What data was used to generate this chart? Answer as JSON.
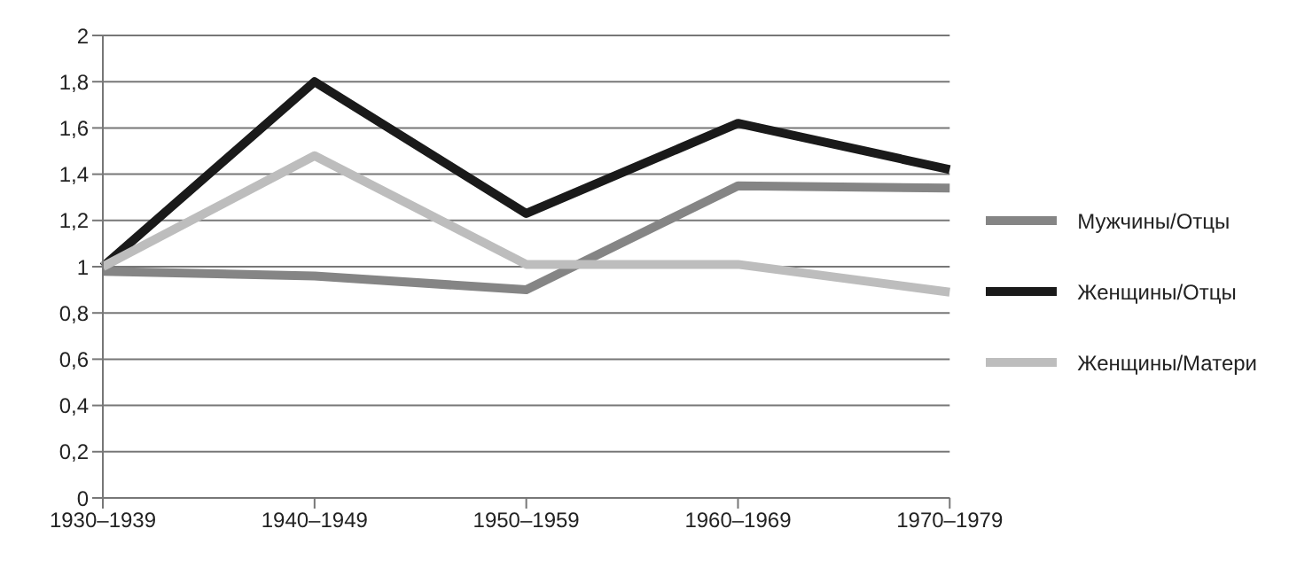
{
  "chart_data": {
    "type": "line",
    "categories": [
      "1930–1939",
      "1940–1949",
      "1950–1959",
      "1960–1969",
      "1970–1979"
    ],
    "series": [
      {
        "name": "Мужчины/Отцы",
        "color": "#858585",
        "values": [
          0.98,
          0.96,
          0.9,
          1.35,
          1.34
        ]
      },
      {
        "name": "Женщины/Отцы",
        "color": "#1a1a1a",
        "values": [
          1.0,
          1.8,
          1.23,
          1.62,
          1.42
        ]
      },
      {
        "name": "Женщины/Матери",
        "color": "#bdbdbd",
        "values": [
          1.0,
          1.48,
          1.01,
          1.01,
          0.89
        ]
      }
    ],
    "ylim": [
      0,
      2
    ],
    "yticks": [
      {
        "value": 0,
        "label": "0"
      },
      {
        "value": 0.2,
        "label": "0,2"
      },
      {
        "value": 0.4,
        "label": "0,4"
      },
      {
        "value": 0.6,
        "label": "0,6"
      },
      {
        "value": 0.8,
        "label": "0,8"
      },
      {
        "value": 1,
        "label": "1"
      },
      {
        "value": 1.2,
        "label": "1,2"
      },
      {
        "value": 1.4,
        "label": "1,4"
      },
      {
        "value": 1.6,
        "label": "1,6"
      },
      {
        "value": 1.8,
        "label": "1,8"
      },
      {
        "value": 2,
        "label": "2"
      }
    ],
    "grid": "y",
    "legend": "right",
    "marker": "none",
    "line_style": "solid"
  }
}
